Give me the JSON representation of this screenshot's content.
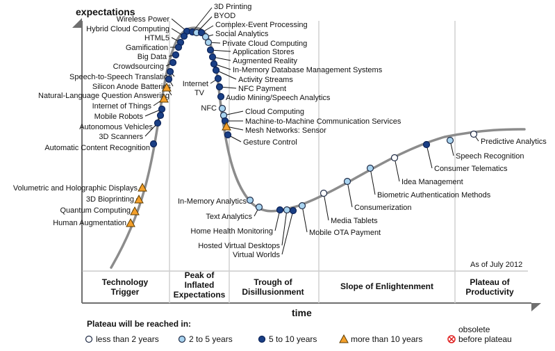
{
  "chart_data": {
    "type": "scatter",
    "title": "",
    "ylabel": "expectations",
    "xlabel": "time",
    "date_note": "As of July 2012",
    "phases": [
      "Technology Trigger",
      "Peak of Inflated Expectations",
      "Trough of Disillusionment",
      "Slope of Enlightenment",
      "Plateau of Productivity"
    ],
    "legend": {
      "title": "Plateau will be reached in:",
      "items": [
        {
          "key": "lt2",
          "label": "less than 2 years"
        },
        {
          "key": "2to5",
          "label": "2 to 5 years"
        },
        {
          "key": "5to10",
          "label": "5 to 10 years"
        },
        {
          "key": "gt10",
          "label": "more than 10 years"
        },
        {
          "key": "obsolete",
          "label_top": "obsolete",
          "label": "before plateau"
        }
      ]
    },
    "colors": {
      "lt2": "#ffffff",
      "2to5": "#a9d4f0",
      "5to10": "#1a3f85",
      "gt10": "#f4a02b",
      "obsolete": "#e02020",
      "curve": "#8c8c8c"
    },
    "technologies": [
      {
        "name": "Wireless Power",
        "category": "5to10"
      },
      {
        "name": "Hybrid Cloud Computing",
        "category": "5to10"
      },
      {
        "name": "HTML5",
        "category": "5to10"
      },
      {
        "name": "Gamification",
        "category": "5to10"
      },
      {
        "name": "Big Data",
        "category": "5to10"
      },
      {
        "name": "Crowdsourcing",
        "category": "5to10"
      },
      {
        "name": "Speech-to-Speech Translation",
        "category": "5to10"
      },
      {
        "name": "Silicon Anode Batteries",
        "category": "5to10"
      },
      {
        "name": "Natural-Language Question Answering",
        "category": "gt10"
      },
      {
        "name": "Internet of Things",
        "category": "gt10"
      },
      {
        "name": "Mobile Robots",
        "category": "5to10"
      },
      {
        "name": "Autonomous Vehicles",
        "category": "5to10"
      },
      {
        "name": "3D Scanners",
        "category": "5to10"
      },
      {
        "name": "Automatic Content Recognition",
        "category": "5to10"
      },
      {
        "name": "Volumetric and Holographic Displays",
        "category": "gt10"
      },
      {
        "name": "3D Bioprinting",
        "category": "gt10"
      },
      {
        "name": "Quantum Computing",
        "category": "gt10"
      },
      {
        "name": "Human Augmentation",
        "category": "gt10"
      },
      {
        "name": "3D Printing",
        "category": "5to10"
      },
      {
        "name": "BYOD",
        "category": "2to5"
      },
      {
        "name": "Complex-Event Processing",
        "category": "5to10"
      },
      {
        "name": "Social Analytics",
        "category": "2to5"
      },
      {
        "name": "Private Cloud Computing",
        "category": "2to5"
      },
      {
        "name": "Application Stores",
        "category": "5to10"
      },
      {
        "name": "Augmented Reality",
        "category": "5to10"
      },
      {
        "name": "In-Memory Database Management Systems",
        "category": "5to10"
      },
      {
        "name": "Activity Streams",
        "category": "5to10"
      },
      {
        "name": "Internet TV",
        "category": "5to10"
      },
      {
        "name": "NFC Payment",
        "category": "5to10"
      },
      {
        "name": "Audio Mining/Speech Analytics",
        "category": "5to10"
      },
      {
        "name": "NFC",
        "category": "2to5"
      },
      {
        "name": "Cloud Computing",
        "category": "2to5"
      },
      {
        "name": "Machine-to-Machine Communication Services",
        "category": "5to10"
      },
      {
        "name": "Mesh Networks: Sensor",
        "category": "gt10"
      },
      {
        "name": "Gesture Control",
        "category": "5to10"
      },
      {
        "name": "In-Memory Analytics",
        "category": "2to5"
      },
      {
        "name": "Text Analytics",
        "category": "2to5"
      },
      {
        "name": "Home Health Monitoring",
        "category": "5to10"
      },
      {
        "name": "Hosted Virtual Desktops",
        "category": "2to5"
      },
      {
        "name": "Virtual Worlds",
        "category": "5to10"
      },
      {
        "name": "Mobile OTA Payment",
        "category": "2to5"
      },
      {
        "name": "Media Tablets",
        "category": "lt2"
      },
      {
        "name": "Consumerization",
        "category": "2to5"
      },
      {
        "name": "Biometric Authentication Methods",
        "category": "2to5"
      },
      {
        "name": "Idea Management",
        "category": "lt2"
      },
      {
        "name": "Consumer Telematics",
        "category": "5to10"
      },
      {
        "name": "Speech Recognition",
        "category": "2to5"
      },
      {
        "name": "Predictive Analytics",
        "category": "lt2"
      }
    ]
  }
}
